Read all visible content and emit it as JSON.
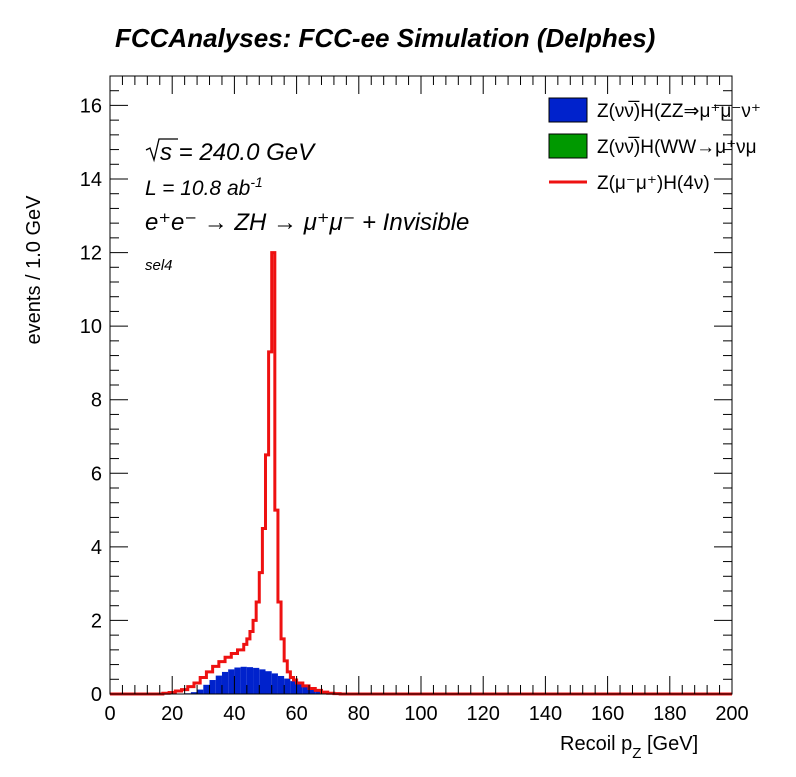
{
  "chart_data": {
    "type": "line",
    "title": "FCCAnalyses: FCC-ee Simulation (Delphes)",
    "xlabel": "Recoil p",
    "xlabel_sub": "Z",
    "xlabel_unit": "[GeV]",
    "ylabel": "events / 1.0 GeV",
    "xlim": [
      0,
      200
    ],
    "ylim": [
      0,
      16.8
    ],
    "x_ticks": [
      "0",
      "20",
      "40",
      "60",
      "80",
      "100",
      "120",
      "140",
      "160",
      "180",
      "200"
    ],
    "y_ticks": [
      "0",
      "2",
      "4",
      "6",
      "8",
      "10",
      "12",
      "14",
      "16"
    ],
    "annotations": {
      "sqrt_s": "s = 240.0 GeV",
      "lumi_label": "L = 10.8 ab",
      "lumi_sup": "-1",
      "process": "e⁺e⁻ → ZH → μ⁺μ⁻ + Invisible",
      "selection": "sel4"
    },
    "legend": [
      {
        "label": "Z(νν̅)H(ZZ⇒μ⁺μ⁻ν⁺",
        "style": "fill",
        "color": "#0022cc"
      },
      {
        "label": "Z(νν̅)H(WW→μ⁺νμ",
        "style": "fill",
        "color": "#009900"
      },
      {
        "label": "Z(μ⁻μ⁺)H(4ν)",
        "style": "line",
        "color": "#ee1111"
      }
    ],
    "series": [
      {
        "name": "Z(μ⁻μ⁺)H(4ν)",
        "color": "#ee1111",
        "style": "step-line",
        "x": [
          14,
          17,
          19,
          21,
          23,
          25,
          27,
          29,
          31,
          33,
          35,
          37,
          39,
          41,
          43,
          44,
          45,
          46,
          47,
          48,
          49,
          50,
          51,
          52,
          53,
          54,
          55,
          56,
          57,
          58,
          59,
          60,
          62,
          64,
          66,
          68,
          70,
          72,
          74,
          200
        ],
        "y": [
          0,
          0.02,
          0.04,
          0.08,
          0.12,
          0.2,
          0.3,
          0.45,
          0.6,
          0.75,
          0.88,
          1.0,
          1.1,
          1.2,
          1.35,
          1.5,
          1.7,
          2.0,
          2.5,
          3.3,
          4.5,
          6.5,
          9.3,
          12.0,
          5.0,
          2.5,
          1.5,
          0.9,
          0.6,
          0.45,
          0.38,
          0.3,
          0.22,
          0.15,
          0.1,
          0.05,
          0.02,
          0.01,
          0,
          0
        ]
      },
      {
        "name": "Z(νν̅)H(ZZ⇒μ⁺μ⁻ν⁺",
        "color": "#0022cc",
        "style": "filled-histogram",
        "x": [
          24,
          26,
          28,
          30,
          32,
          34,
          36,
          38,
          40,
          42,
          44,
          46,
          48,
          50,
          52,
          54,
          56,
          58,
          60,
          62,
          64,
          66,
          68,
          70,
          72,
          74
        ],
        "y": [
          0.02,
          0.05,
          0.12,
          0.25,
          0.38,
          0.5,
          0.6,
          0.67,
          0.72,
          0.74,
          0.73,
          0.71,
          0.67,
          0.62,
          0.56,
          0.49,
          0.42,
          0.35,
          0.28,
          0.21,
          0.15,
          0.1,
          0.06,
          0.03,
          0.01,
          0
        ]
      },
      {
        "name": "Z(νν̅)H(WW→μ⁺νμ",
        "color": "#009900",
        "style": "filled-histogram",
        "x": [
          40,
          60
        ],
        "y": [
          0,
          0
        ]
      }
    ]
  }
}
